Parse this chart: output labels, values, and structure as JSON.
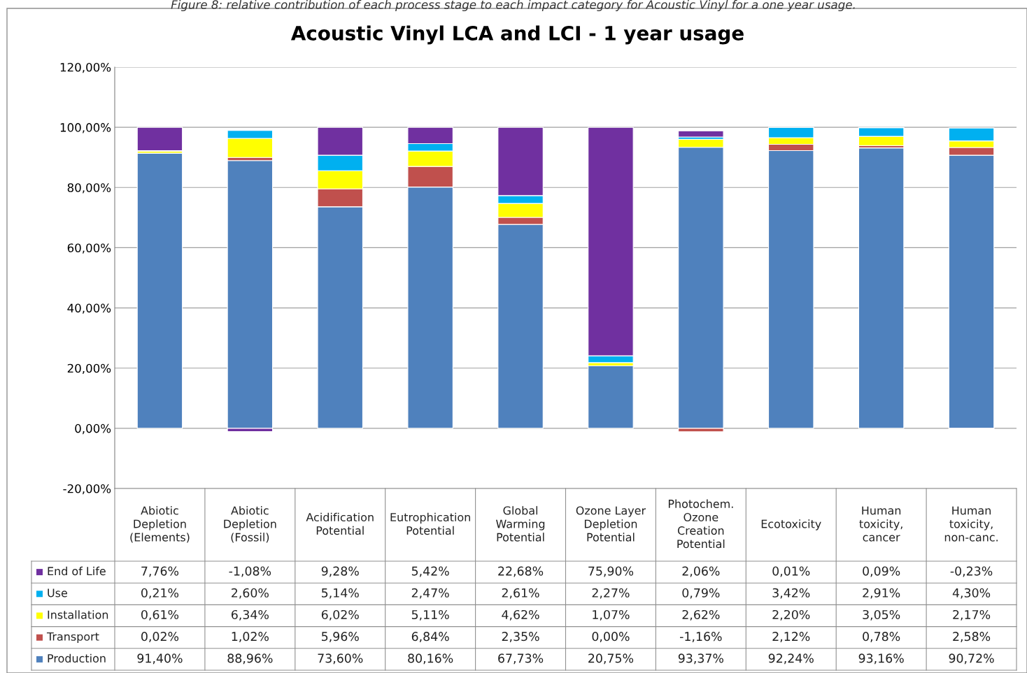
{
  "chart_data": {
    "type": "bar",
    "title": "Acoustic Vinyl LCA and LCI - 1 year usage",
    "annotations": [
      "Figure 8: relative contribution of each process stage to each impact category for Acoustic Vinyl for a one year usage."
    ],
    "categories": [
      "Abiotic Depletion (Elements)",
      "Abiotic Depletion (Fossil)",
      "Acidification Potential",
      "Eutrophication Potential",
      "Global Warming Potential",
      "Ozone Layer Depletion Potential",
      "Photochem. Ozone Creation Potential",
      "Ecotoxicity",
      "Human toxicity, cancer",
      "Human toxicity, non-canc."
    ],
    "stacked": true,
    "data_labels": true,
    "grid": "y",
    "legend": "bottom",
    "ylim": [
      -20,
      120
    ],
    "yticks": [
      {
        "value": -20,
        "label": "-20,00%"
      },
      {
        "value": 0,
        "label": "0,00%"
      },
      {
        "value": 20,
        "label": "20,00%"
      },
      {
        "value": 40,
        "label": "40,00%"
      },
      {
        "value": 60,
        "label": "60,00%"
      },
      {
        "value": 80,
        "label": "80,00%"
      },
      {
        "value": 100,
        "label": "100,00%"
      },
      {
        "value": 120,
        "label": "120,00%"
      }
    ],
    "series": [
      {
        "name": "Production",
        "color": "#4f81bd",
        "values": [
          91.4,
          88.96,
          73.6,
          80.16,
          67.73,
          20.75,
          93.37,
          92.24,
          93.16,
          90.72
        ],
        "value_labels": [
          "91,40%",
          "88,96%",
          "73,60%",
          "80,16%",
          "67,73%",
          "20,75%",
          "93,37%",
          "92,24%",
          "93,16%",
          "90,72%"
        ]
      },
      {
        "name": "Transport",
        "color": "#c0504d",
        "values": [
          0.02,
          1.02,
          5.96,
          6.84,
          2.35,
          0.0,
          -1.16,
          2.12,
          0.78,
          2.58
        ],
        "value_labels": [
          "0,02%",
          "1,02%",
          "5,96%",
          "6,84%",
          "2,35%",
          "0,00%",
          "-1,16%",
          "2,12%",
          "0,78%",
          "2,58%"
        ]
      },
      {
        "name": "Installation",
        "color": "#ffff00",
        "values": [
          0.61,
          6.34,
          6.02,
          5.11,
          4.62,
          1.07,
          2.62,
          2.2,
          3.05,
          2.17
        ],
        "value_labels": [
          "0,61%",
          "6,34%",
          "6,02%",
          "5,11%",
          "4,62%",
          "1,07%",
          "2,62%",
          "2,20%",
          "3,05%",
          "2,17%"
        ]
      },
      {
        "name": "Use",
        "color": "#00b0f0",
        "values": [
          0.21,
          2.6,
          5.14,
          2.47,
          2.61,
          2.27,
          0.79,
          3.42,
          2.91,
          4.3
        ],
        "value_labels": [
          "0,21%",
          "2,60%",
          "5,14%",
          "2,47%",
          "2,61%",
          "2,27%",
          "0,79%",
          "3,42%",
          "2,91%",
          "4,30%"
        ]
      },
      {
        "name": "End of Life",
        "color": "#7030a0",
        "values": [
          7.76,
          -1.08,
          9.28,
          5.42,
          22.68,
          75.9,
          2.06,
          0.01,
          0.09,
          -0.23
        ],
        "value_labels": [
          "7,76%",
          "-1,08%",
          "9,28%",
          "5,42%",
          "22,68%",
          "75,90%",
          "2,06%",
          "0,01%",
          "0,09%",
          "-0,23%"
        ]
      }
    ]
  }
}
